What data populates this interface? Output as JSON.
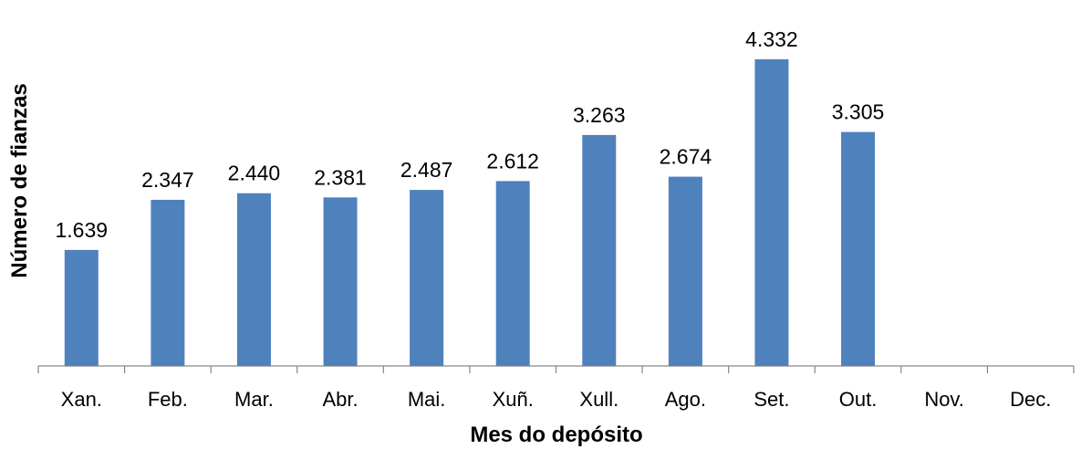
{
  "chart_data": {
    "type": "bar",
    "title": "",
    "xlabel": "Mes do depósito",
    "ylabel": "Número de fianzas",
    "categories": [
      "Xan.",
      "Feb.",
      "Mar.",
      "Abr.",
      "Mai.",
      "Xuñ.",
      "Xull.",
      "Ago.",
      "Set.",
      "Out.",
      "Nov.",
      "Dec."
    ],
    "values": [
      1639,
      2347,
      2440,
      2381,
      2487,
      2612,
      3263,
      2674,
      4332,
      3305,
      null,
      null
    ],
    "value_labels": [
      "1.639",
      "2.347",
      "2.440",
      "2.381",
      "2.487",
      "2.612",
      "3.263",
      "2.674",
      "4.332",
      "3.305",
      "",
      ""
    ],
    "ylim": [
      0,
      4500
    ],
    "grid": false,
    "legend": "none",
    "bar_color": "#4F81BD",
    "axis_color": "#868686"
  }
}
